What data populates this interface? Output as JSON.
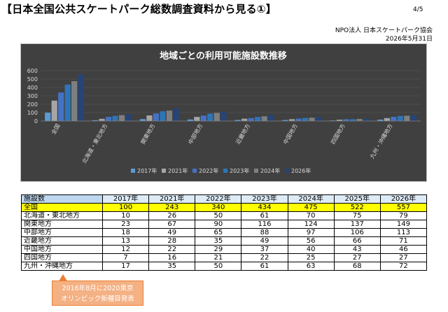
{
  "header": {
    "title": "【日本全国公共スケートパーク総数調査資料から見る①】",
    "page_number": "4/5",
    "org_line1": "NPO法人 日本スケートパーク協会",
    "org_line2": "2026年5月31日"
  },
  "colors": {
    "chart_bg": "#404040",
    "highlight_row": "#ffff00",
    "header_row": "#ddebf7",
    "callout_bg": "#f4b183"
  },
  "chart_data": {
    "type": "bar",
    "title": "地域ごとの利用可能施設数推移",
    "categories": [
      "全国",
      "北海道・東北地方",
      "関東地方",
      "中部地方",
      "近畿地方",
      "中国地方",
      "四国地方",
      "九州・沖縄地方"
    ],
    "series": [
      {
        "name": "2017年",
        "color": "#5b9bd5",
        "values": [
          100,
          10,
          23,
          18,
          13,
          12,
          7,
          17
        ]
      },
      {
        "name": "2021年",
        "color": "#a5a5a5",
        "values": [
          243,
          26,
          67,
          49,
          28,
          22,
          16,
          35
        ]
      },
      {
        "name": "2022年",
        "color": "#4472c4",
        "values": [
          340,
          50,
          90,
          65,
          35,
          29,
          21,
          50
        ]
      },
      {
        "name": "2023年",
        "color": "#2e75b6",
        "values": [
          434,
          61,
          116,
          88,
          49,
          37,
          22,
          61
        ]
      },
      {
        "name": "2024年",
        "color": "#7f7f7f",
        "values": [
          475,
          70,
          124,
          97,
          56,
          40,
          25,
          63
        ]
      },
      {
        "name": "2026年",
        "color": "#264478",
        "values": [
          557,
          79,
          149,
          113,
          71,
          46,
          27,
          72
        ]
      }
    ],
    "yticks": [
      0,
      100,
      200,
      300,
      400,
      500,
      600
    ],
    "ylim": [
      0,
      600
    ],
    "legend_position": "bottom"
  },
  "table": {
    "corner": "施設数",
    "years": [
      "2017年",
      "2021年",
      "2022年",
      "2023年",
      "2024年",
      "2025年",
      "2026年"
    ],
    "rows": [
      {
        "label": "全国",
        "values": [
          "100",
          "243",
          "340",
          "434",
          "475",
          "522",
          "557"
        ],
        "highlight": true
      },
      {
        "label": "北海道・東北地方",
        "values": [
          "10",
          "26",
          "50",
          "61",
          "70",
          "75",
          "79"
        ]
      },
      {
        "label": "関東地方",
        "values": [
          "23",
          "67",
          "90",
          "116",
          "124",
          "137",
          "149"
        ]
      },
      {
        "label": "中部地方",
        "values": [
          "18",
          "49",
          "65",
          "88",
          "97",
          "106",
          "113"
        ]
      },
      {
        "label": "近畿地方",
        "values": [
          "13",
          "28",
          "35",
          "49",
          "56",
          "66",
          "71"
        ]
      },
      {
        "label": "中国地方",
        "values": [
          "12",
          "22",
          "29",
          "37",
          "40",
          "43",
          "46"
        ]
      },
      {
        "label": "四国地方",
        "values": [
          "7",
          "16",
          "21",
          "22",
          "25",
          "27",
          "27"
        ]
      },
      {
        "label": "九州・沖縄地方",
        "values": [
          "17",
          "35",
          "50",
          "61",
          "63",
          "68",
          "72"
        ]
      }
    ]
  },
  "callout": {
    "line1": "2016年8月に2020東京",
    "line2": "オリンピック新種目発表"
  }
}
